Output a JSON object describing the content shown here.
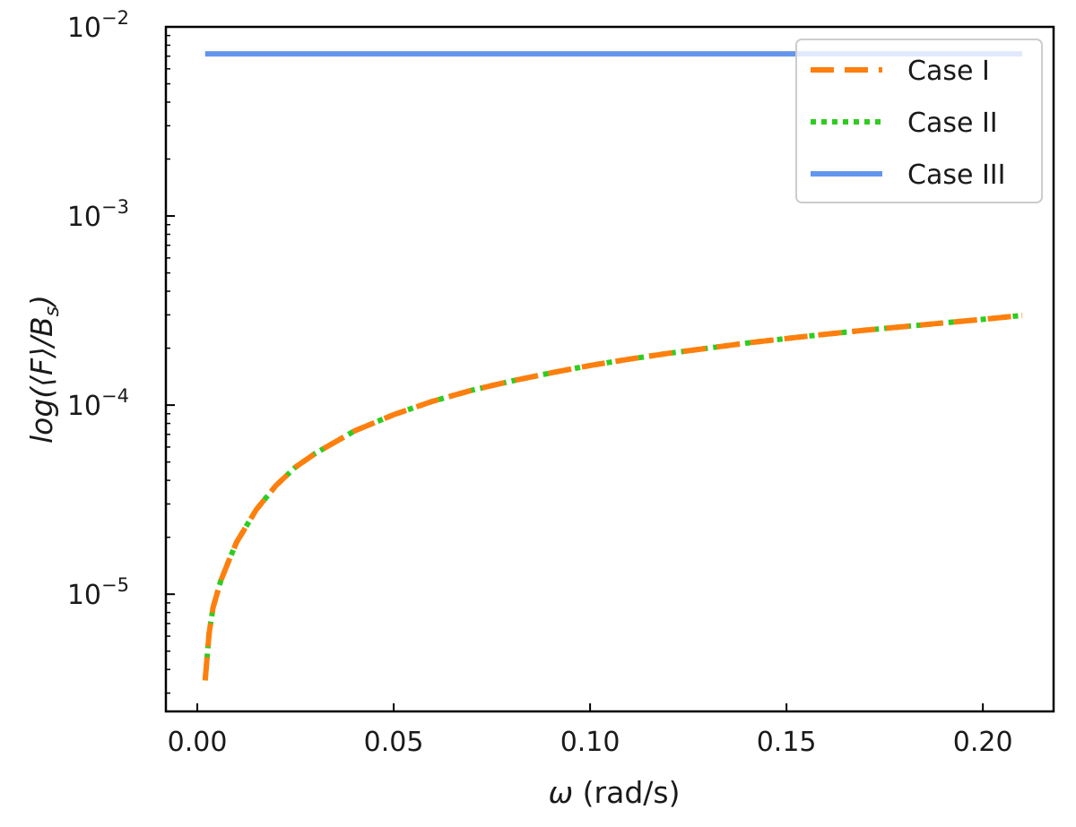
{
  "chart_data": {
    "type": "line",
    "xlabel": {
      "symbol": "ω",
      "unit": "(rad/s)"
    },
    "ylabel": {
      "pre": "log(⟨",
      "F": "F",
      "mid": "⟩/",
      "B": "B",
      "sub": "s",
      "post": ")"
    },
    "xlim": [
      -0.008,
      0.218
    ],
    "ylim": [
      2.4e-06,
      0.01
    ],
    "yscale": "log",
    "grid": false,
    "legend_position": "top-right",
    "x_ticks": [
      0.0,
      0.05,
      0.1,
      0.15,
      0.2
    ],
    "x_tick_labels": [
      "0.00",
      "0.05",
      "0.10",
      "0.15",
      "0.20"
    ],
    "y_ticks": [
      {
        "value": 1e-05,
        "base": "10",
        "exp": "−5"
      },
      {
        "value": 0.0001,
        "base": "10",
        "exp": "−4"
      },
      {
        "value": 0.001,
        "base": "10",
        "exp": "−3"
      },
      {
        "value": 0.01,
        "base": "10",
        "exp": "−2"
      }
    ],
    "series": [
      {
        "name": "Case I",
        "color": "#ff7f0e",
        "style": "dashed",
        "x": [
          0.002,
          0.003,
          0.004,
          0.006,
          0.008,
          0.01,
          0.015,
          0.02,
          0.025,
          0.03,
          0.04,
          0.05,
          0.06,
          0.07,
          0.08,
          0.09,
          0.1,
          0.11,
          0.12,
          0.13,
          0.14,
          0.15,
          0.16,
          0.17,
          0.18,
          0.19,
          0.2,
          0.21
        ],
        "y": [
          3.5e-06,
          6.2e-06,
          8.5e-06,
          1.18e-05,
          1.5e-05,
          1.88e-05,
          2.8e-05,
          3.75e-05,
          4.7e-05,
          5.55e-05,
          7.3e-05,
          8.9e-05,
          0.000105,
          0.00012,
          0.000134,
          0.000148,
          0.000162,
          0.000175,
          0.000188,
          0.0002,
          0.000213,
          0.000225,
          0.000237,
          0.000249,
          0.00026,
          0.000272,
          0.000284,
          0.000298
        ]
      },
      {
        "name": "Case II",
        "color": "#2ecc1f",
        "style": "dotted",
        "x": [
          0.002,
          0.003,
          0.004,
          0.006,
          0.008,
          0.01,
          0.015,
          0.02,
          0.025,
          0.03,
          0.04,
          0.05,
          0.06,
          0.07,
          0.08,
          0.09,
          0.1,
          0.11,
          0.12,
          0.13,
          0.14,
          0.15,
          0.16,
          0.17,
          0.18,
          0.19,
          0.2,
          0.21
        ],
        "y": [
          3.5e-06,
          6.2e-06,
          8.5e-06,
          1.18e-05,
          1.5e-05,
          1.88e-05,
          2.8e-05,
          3.75e-05,
          4.7e-05,
          5.55e-05,
          7.3e-05,
          8.9e-05,
          0.000105,
          0.00012,
          0.000134,
          0.000148,
          0.000162,
          0.000175,
          0.000188,
          0.0002,
          0.000213,
          0.000225,
          0.000237,
          0.000249,
          0.00026,
          0.000272,
          0.000284,
          0.000298
        ]
      },
      {
        "name": "Case III",
        "color": "#6495ed",
        "style": "solid",
        "x": [
          0.002,
          0.21
        ],
        "y": [
          0.0072,
          0.0072
        ]
      }
    ]
  }
}
